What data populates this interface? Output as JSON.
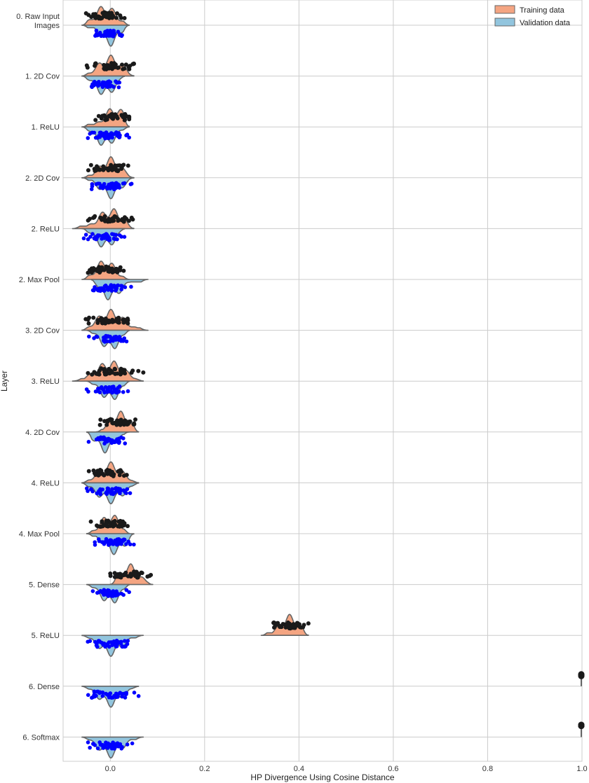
{
  "chart_data": {
    "type": "split-violin",
    "title": "",
    "xlabel": "HP Divergence Using Cosine Distance",
    "ylabel": "Layer",
    "xlim": [
      -0.1,
      1.0
    ],
    "xticks": [
      0.0,
      0.2,
      0.4,
      0.6,
      0.8,
      1.0
    ],
    "xtick_labels": [
      "0.0",
      "0.2",
      "0.4",
      "0.6",
      "0.8",
      "1.0"
    ],
    "grid": true,
    "legend_position": "top-right",
    "series": [
      {
        "name": "Training data",
        "side": "top",
        "fill": "#f4a582",
        "point_color": "#1a1a1a"
      },
      {
        "name": "Validation data",
        "side": "bottom",
        "fill": "#92c5de",
        "point_color": "#0000ff"
      }
    ],
    "categories": [
      "0. Raw Input\nImages",
      "1. 2D Cov",
      "1. ReLU",
      "2. 2D Cov",
      "2. ReLU",
      "2. Max Pool",
      "3. 2D Cov",
      "3. ReLU",
      "4. 2D Cov",
      "4. ReLU",
      "4. Max Pool",
      "5. Dense",
      "5. ReLU",
      "6. Dense",
      "6. Softmax"
    ],
    "distributions": [
      {
        "train": {
          "min": -0.06,
          "max": 0.04,
          "center": -0.01,
          "spread": 0.022
        },
        "val": {
          "min": -0.06,
          "max": 0.04,
          "center": 0.0,
          "spread": 0.018
        }
      },
      {
        "train": {
          "min": -0.06,
          "max": 0.05,
          "center": 0.0,
          "spread": 0.025
        },
        "val": {
          "min": -0.06,
          "max": 0.03,
          "center": -0.01,
          "spread": 0.02
        }
      },
      {
        "train": {
          "min": -0.06,
          "max": 0.04,
          "center": 0.01,
          "spread": 0.022
        },
        "val": {
          "min": -0.06,
          "max": 0.04,
          "center": -0.01,
          "spread": 0.02
        }
      },
      {
        "train": {
          "min": -0.06,
          "max": 0.05,
          "center": 0.0,
          "spread": 0.022
        },
        "val": {
          "min": -0.06,
          "max": 0.05,
          "center": 0.0,
          "spread": 0.022
        }
      },
      {
        "train": {
          "min": -0.08,
          "max": 0.05,
          "center": 0.0,
          "spread": 0.025
        },
        "val": {
          "min": -0.06,
          "max": 0.03,
          "center": -0.01,
          "spread": 0.02
        }
      },
      {
        "train": {
          "min": -0.06,
          "max": 0.04,
          "center": -0.01,
          "spread": 0.02
        },
        "val": {
          "min": -0.04,
          "max": 0.08,
          "center": 0.0,
          "spread": 0.022
        }
      },
      {
        "train": {
          "min": -0.06,
          "max": 0.08,
          "center": 0.0,
          "spread": 0.028
        },
        "val": {
          "min": -0.05,
          "max": 0.04,
          "center": 0.0,
          "spread": 0.02
        }
      },
      {
        "train": {
          "min": -0.08,
          "max": 0.07,
          "center": 0.0,
          "spread": 0.03
        },
        "val": {
          "min": -0.05,
          "max": 0.04,
          "center": 0.0,
          "spread": 0.02
        }
      },
      {
        "train": {
          "min": -0.03,
          "max": 0.06,
          "center": 0.02,
          "spread": 0.02
        },
        "val": {
          "min": -0.05,
          "max": 0.04,
          "center": -0.01,
          "spread": 0.02
        }
      },
      {
        "train": {
          "min": -0.06,
          "max": 0.06,
          "center": 0.0,
          "spread": 0.025
        },
        "val": {
          "min": -0.06,
          "max": 0.06,
          "center": 0.0,
          "spread": 0.028
        }
      },
      {
        "train": {
          "min": -0.05,
          "max": 0.04,
          "center": 0.0,
          "spread": 0.02
        },
        "val": {
          "min": -0.05,
          "max": 0.05,
          "center": 0.01,
          "spread": 0.022
        }
      },
      {
        "train": {
          "min": 0.0,
          "max": 0.09,
          "center": 0.04,
          "spread": 0.02
        },
        "val": {
          "min": -0.05,
          "max": 0.04,
          "center": 0.0,
          "spread": 0.02
        }
      },
      {
        "train": {
          "min": 0.32,
          "max": 0.42,
          "center": 0.38,
          "spread": 0.02
        },
        "val": {
          "min": -0.06,
          "max": 0.07,
          "center": 0.0,
          "spread": 0.025
        }
      },
      {
        "train": {
          "min": 0.998,
          "max": 1.0,
          "center": 1.0,
          "spread": 0.001
        },
        "val": {
          "min": -0.06,
          "max": 0.06,
          "center": 0.0,
          "spread": 0.025
        }
      },
      {
        "train": {
          "min": 0.998,
          "max": 1.0,
          "center": 1.0,
          "spread": 0.001
        },
        "val": {
          "min": -0.06,
          "max": 0.07,
          "center": 0.0,
          "spread": 0.025
        }
      }
    ]
  }
}
